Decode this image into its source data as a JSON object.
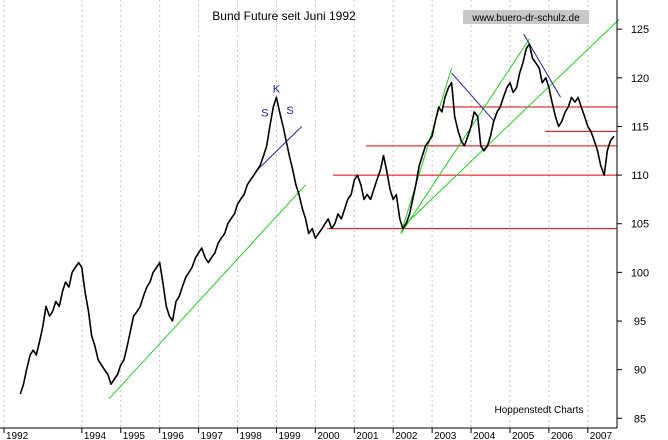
{
  "chart_data": {
    "type": "line",
    "title": "Bund Future seit Juni 1992",
    "watermark": "www.buero-dr-schulz.de",
    "source": "Hoppenstedt Charts",
    "xlabel": "",
    "ylabel": "",
    "xlim": [
      1992.0,
      2007.75
    ],
    "ylim": [
      84,
      128
    ],
    "y_ticks": [
      85,
      90,
      95,
      100,
      105,
      110,
      115,
      120,
      125
    ],
    "x_ticks": [
      {
        "label": "1992",
        "x": 1992.0
      },
      {
        "label": "1994",
        "x": 1994.0
      },
      {
        "label": "1995",
        "x": 1995.0
      },
      {
        "label": "1996",
        "x": 1996.0
      },
      {
        "label": "1997",
        "x": 1997.0
      },
      {
        "label": "1998",
        "x": 1998.0
      },
      {
        "label": "1999",
        "x": 1999.0
      },
      {
        "label": "2000",
        "x": 2000.0
      },
      {
        "label": "2001",
        "x": 2001.0
      },
      {
        "label": "2002",
        "x": 2002.0
      },
      {
        "label": "2003",
        "x": 2003.0
      },
      {
        "label": "2004",
        "x": 2004.0
      },
      {
        "label": "2005",
        "x": 2005.0
      },
      {
        "label": "2006",
        "x": 2006.0
      },
      {
        "label": "2007",
        "x": 2007.0
      }
    ],
    "grid": "vertical-dashed",
    "y_axis_position": "right",
    "series": [
      {
        "color": "#000000",
        "points": [
          [
            1992.42,
            87.5
          ],
          [
            1992.5,
            88.5
          ],
          [
            1992.58,
            90.0
          ],
          [
            1992.67,
            91.5
          ],
          [
            1992.75,
            92.0
          ],
          [
            1992.83,
            91.5
          ],
          [
            1992.92,
            93.0
          ],
          [
            1993.0,
            94.5
          ],
          [
            1993.08,
            96.5
          ],
          [
            1993.17,
            95.5
          ],
          [
            1993.25,
            96.0
          ],
          [
            1993.33,
            97.0
          ],
          [
            1993.42,
            96.5
          ],
          [
            1993.5,
            98.0
          ],
          [
            1993.58,
            99.0
          ],
          [
            1993.67,
            98.5
          ],
          [
            1993.75,
            100.0
          ],
          [
            1993.83,
            100.5
          ],
          [
            1993.92,
            101.0
          ],
          [
            1994.0,
            100.5
          ],
          [
            1994.08,
            98.0
          ],
          [
            1994.17,
            96.0
          ],
          [
            1994.25,
            93.5
          ],
          [
            1994.33,
            92.5
          ],
          [
            1994.42,
            91.0
          ],
          [
            1994.5,
            90.5
          ],
          [
            1994.58,
            90.0
          ],
          [
            1994.67,
            89.5
          ],
          [
            1994.75,
            88.5
          ],
          [
            1994.83,
            89.0
          ],
          [
            1994.92,
            89.5
          ],
          [
            1995.0,
            90.5
          ],
          [
            1995.08,
            91.0
          ],
          [
            1995.17,
            92.5
          ],
          [
            1995.25,
            94.0
          ],
          [
            1995.33,
            95.5
          ],
          [
            1995.42,
            96.0
          ],
          [
            1995.5,
            96.5
          ],
          [
            1995.58,
            97.5
          ],
          [
            1995.67,
            98.5
          ],
          [
            1995.75,
            99.0
          ],
          [
            1995.83,
            100.0
          ],
          [
            1995.92,
            100.5
          ],
          [
            1996.0,
            101.0
          ],
          [
            1996.08,
            99.0
          ],
          [
            1996.17,
            96.5
          ],
          [
            1996.25,
            95.5
          ],
          [
            1996.33,
            95.0
          ],
          [
            1996.42,
            97.0
          ],
          [
            1996.5,
            97.5
          ],
          [
            1996.58,
            98.5
          ],
          [
            1996.67,
            99.5
          ],
          [
            1996.75,
            100.0
          ],
          [
            1996.83,
            100.5
          ],
          [
            1996.92,
            101.5
          ],
          [
            1997.0,
            102.0
          ],
          [
            1997.08,
            102.5
          ],
          [
            1997.17,
            101.5
          ],
          [
            1997.25,
            101.0
          ],
          [
            1997.33,
            101.5
          ],
          [
            1997.42,
            102.0
          ],
          [
            1997.5,
            103.0
          ],
          [
            1997.58,
            103.5
          ],
          [
            1997.67,
            104.0
          ],
          [
            1997.75,
            105.0
          ],
          [
            1997.83,
            105.5
          ],
          [
            1997.92,
            106.0
          ],
          [
            1998.0,
            107.0
          ],
          [
            1998.08,
            107.5
          ],
          [
            1998.17,
            108.0
          ],
          [
            1998.25,
            109.0
          ],
          [
            1998.33,
            109.5
          ],
          [
            1998.42,
            110.0
          ],
          [
            1998.5,
            110.5
          ],
          [
            1998.58,
            111.0
          ],
          [
            1998.67,
            112.0
          ],
          [
            1998.75,
            113.0
          ],
          [
            1998.83,
            115.0
          ],
          [
            1998.92,
            117.0
          ],
          [
            1999.0,
            118.0
          ],
          [
            1999.08,
            116.5
          ],
          [
            1999.17,
            115.0
          ],
          [
            1999.25,
            113.5
          ],
          [
            1999.33,
            112.0
          ],
          [
            1999.42,
            110.5
          ],
          [
            1999.5,
            109.0
          ],
          [
            1999.58,
            108.0
          ],
          [
            1999.67,
            106.5
          ],
          [
            1999.75,
            105.5
          ],
          [
            1999.83,
            104.0
          ],
          [
            1999.92,
            104.5
          ],
          [
            2000.0,
            103.5
          ],
          [
            2000.08,
            104.0
          ],
          [
            2000.17,
            104.5
          ],
          [
            2000.25,
            105.0
          ],
          [
            2000.33,
            105.5
          ],
          [
            2000.42,
            104.5
          ],
          [
            2000.5,
            105.0
          ],
          [
            2000.58,
            106.0
          ],
          [
            2000.67,
            105.5
          ],
          [
            2000.75,
            106.5
          ],
          [
            2000.83,
            107.5
          ],
          [
            2000.92,
            108.0
          ],
          [
            2001.0,
            109.5
          ],
          [
            2001.08,
            110.0
          ],
          [
            2001.17,
            109.0
          ],
          [
            2001.25,
            107.5
          ],
          [
            2001.33,
            108.0
          ],
          [
            2001.42,
            107.5
          ],
          [
            2001.5,
            108.5
          ],
          [
            2001.58,
            109.5
          ],
          [
            2001.67,
            110.5
          ],
          [
            2001.75,
            112.0
          ],
          [
            2001.83,
            110.5
          ],
          [
            2001.92,
            108.5
          ],
          [
            2002.0,
            107.5
          ],
          [
            2002.08,
            108.0
          ],
          [
            2002.17,
            105.5
          ],
          [
            2002.25,
            104.5
          ],
          [
            2002.33,
            105.0
          ],
          [
            2002.42,
            106.0
          ],
          [
            2002.5,
            107.5
          ],
          [
            2002.58,
            109.0
          ],
          [
            2002.67,
            111.0
          ],
          [
            2002.75,
            112.0
          ],
          [
            2002.83,
            113.0
          ],
          [
            2002.92,
            113.5
          ],
          [
            2003.0,
            114.0
          ],
          [
            2003.08,
            115.5
          ],
          [
            2003.17,
            117.0
          ],
          [
            2003.25,
            116.5
          ],
          [
            2003.33,
            118.0
          ],
          [
            2003.42,
            119.0
          ],
          [
            2003.5,
            119.5
          ],
          [
            2003.58,
            116.0
          ],
          [
            2003.67,
            114.5
          ],
          [
            2003.75,
            113.5
          ],
          [
            2003.83,
            113.0
          ],
          [
            2003.92,
            114.0
          ],
          [
            2004.0,
            115.0
          ],
          [
            2004.08,
            116.5
          ],
          [
            2004.17,
            116.0
          ],
          [
            2004.25,
            113.0
          ],
          [
            2004.33,
            112.5
          ],
          [
            2004.42,
            113.0
          ],
          [
            2004.5,
            114.0
          ],
          [
            2004.58,
            115.5
          ],
          [
            2004.67,
            116.5
          ],
          [
            2004.75,
            117.0
          ],
          [
            2004.83,
            118.0
          ],
          [
            2004.92,
            119.0
          ],
          [
            2005.0,
            119.5
          ],
          [
            2005.08,
            118.5
          ],
          [
            2005.17,
            119.0
          ],
          [
            2005.25,
            120.5
          ],
          [
            2005.33,
            121.5
          ],
          [
            2005.42,
            123.0
          ],
          [
            2005.5,
            123.5
          ],
          [
            2005.58,
            122.0
          ],
          [
            2005.67,
            121.5
          ],
          [
            2005.75,
            121.0
          ],
          [
            2005.83,
            119.5
          ],
          [
            2005.92,
            120.0
          ],
          [
            2006.0,
            119.0
          ],
          [
            2006.08,
            117.5
          ],
          [
            2006.17,
            116.0
          ],
          [
            2006.25,
            115.0
          ],
          [
            2006.33,
            115.5
          ],
          [
            2006.42,
            116.5
          ],
          [
            2006.5,
            117.0
          ],
          [
            2006.58,
            118.0
          ],
          [
            2006.67,
            117.5
          ],
          [
            2006.75,
            118.0
          ],
          [
            2006.83,
            117.0
          ],
          [
            2006.92,
            116.0
          ],
          [
            2007.0,
            115.0
          ],
          [
            2007.08,
            114.5
          ],
          [
            2007.17,
            113.5
          ],
          [
            2007.25,
            112.5
          ],
          [
            2007.33,
            111.0
          ],
          [
            2007.42,
            110.0
          ],
          [
            2007.5,
            112.5
          ],
          [
            2007.58,
            113.5
          ],
          [
            2007.67,
            114.0
          ]
        ]
      }
    ],
    "support_resistance_lines": [
      {
        "color": "#e00000",
        "x0": 2000.3,
        "x1": 2007.75,
        "y": 104.5
      },
      {
        "color": "#e00000",
        "x0": 2000.45,
        "x1": 2007.75,
        "y": 110.0
      },
      {
        "color": "#e00000",
        "x0": 2001.3,
        "x1": 2007.75,
        "y": 113.0
      },
      {
        "color": "#e00000",
        "x0": 2003.3,
        "x1": 2007.75,
        "y": 117.0
      },
      {
        "color": "#e00000",
        "x0": 2005.9,
        "x1": 2007.75,
        "y": 114.5
      }
    ],
    "trend_lines": [
      {
        "color": "#22cc22",
        "x0": 1994.7,
        "y0": 87.0,
        "x1": 1999.75,
        "y1": 109.0
      },
      {
        "color": "#22cc22",
        "x0": 2002.2,
        "y0": 104.0,
        "x1": 2003.5,
        "y1": 121.0
      },
      {
        "color": "#22cc22",
        "x0": 2002.2,
        "y0": 104.0,
        "x1": 2005.5,
        "y1": 124.0
      },
      {
        "color": "#22cc22",
        "x0": 2002.2,
        "y0": 104.5,
        "x1": 2007.8,
        "y1": 126.0
      },
      {
        "color": "#2222aa",
        "x0": 1998.5,
        "y0": 110.5,
        "x1": 1999.65,
        "y1": 115.0
      },
      {
        "color": "#2222aa",
        "x0": 2003.5,
        "y0": 120.5,
        "x1": 2004.6,
        "y1": 115.5
      },
      {
        "color": "#2222aa",
        "x0": 2005.35,
        "y0": 124.5,
        "x1": 2006.3,
        "y1": 118.0
      }
    ],
    "annotations": [
      {
        "text": "S",
        "x": 1998.7,
        "y": 116.0
      },
      {
        "text": "K",
        "x": 1999.0,
        "y": 118.5
      },
      {
        "text": "S",
        "x": 1999.35,
        "y": 116.3
      }
    ]
  }
}
